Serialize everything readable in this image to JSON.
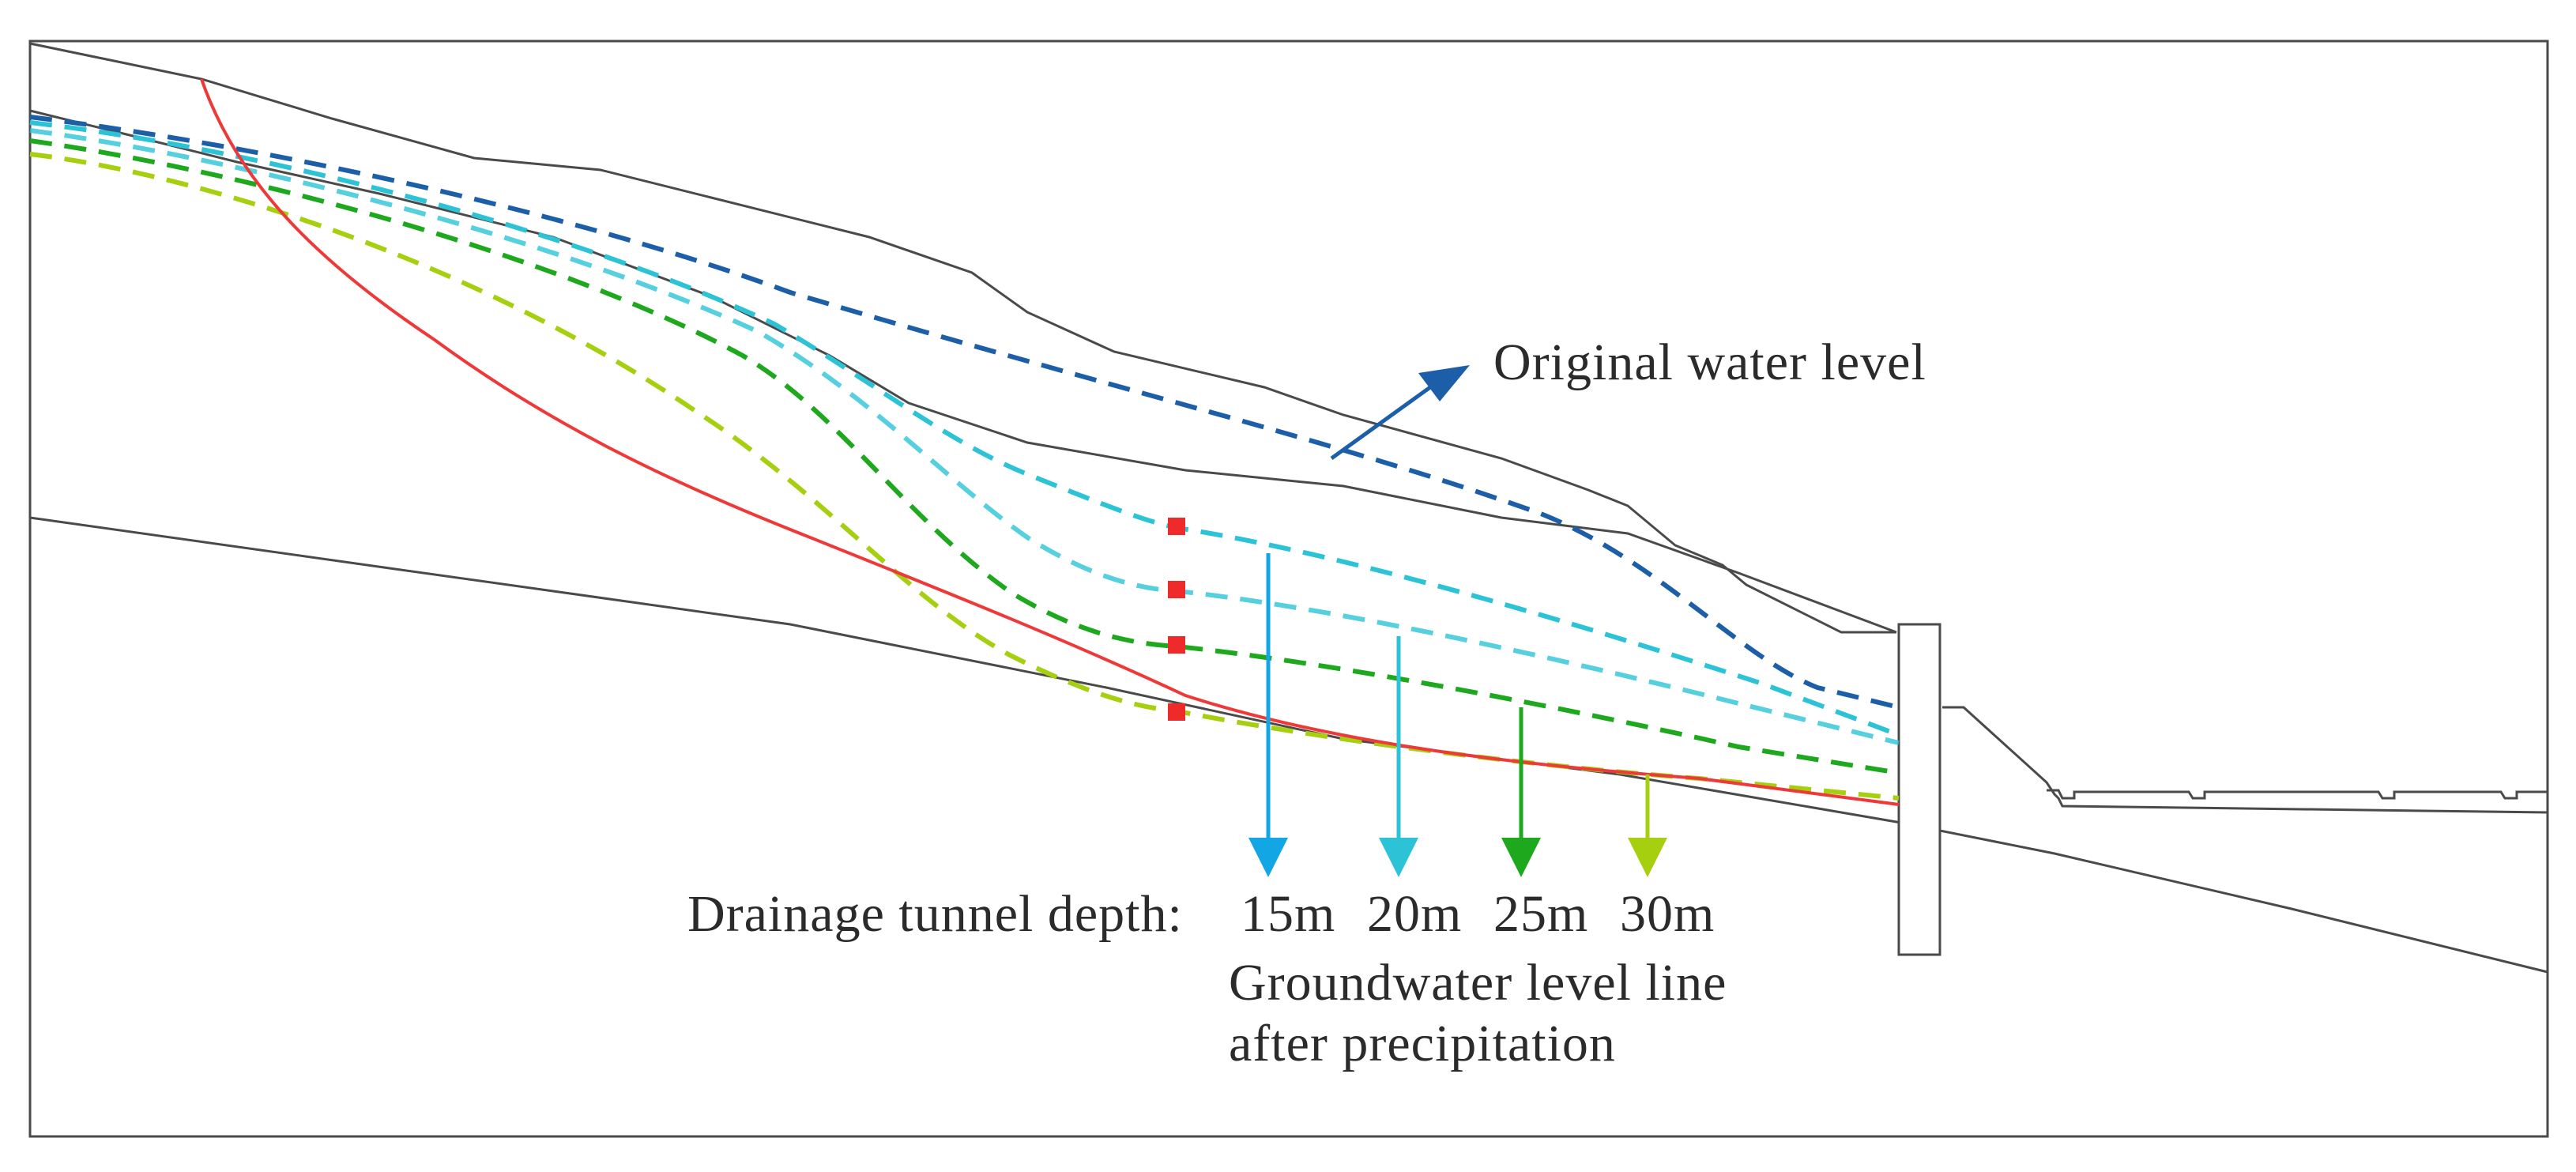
{
  "labels": {
    "original_water_level": "Original water level",
    "drainage_depth_prefix": "Drainage tunnel depth:",
    "groundwater_line1": "Groundwater level line",
    "groundwater_line2": "after precipitation"
  },
  "depths": [
    {
      "label": "15m",
      "color": "#12a6e4"
    },
    {
      "label": "20m",
      "color": "#2cc3d6"
    },
    {
      "label": "25m",
      "color": "#1ea81e"
    },
    {
      "label": "30m",
      "color": "#a6cf10"
    }
  ],
  "colors": {
    "original_water_level": "#1c5fa8",
    "slip_surface": "#ef3838",
    "terrain": "#4a4a4a",
    "tunnel_marker": "#ef2a2a"
  }
}
